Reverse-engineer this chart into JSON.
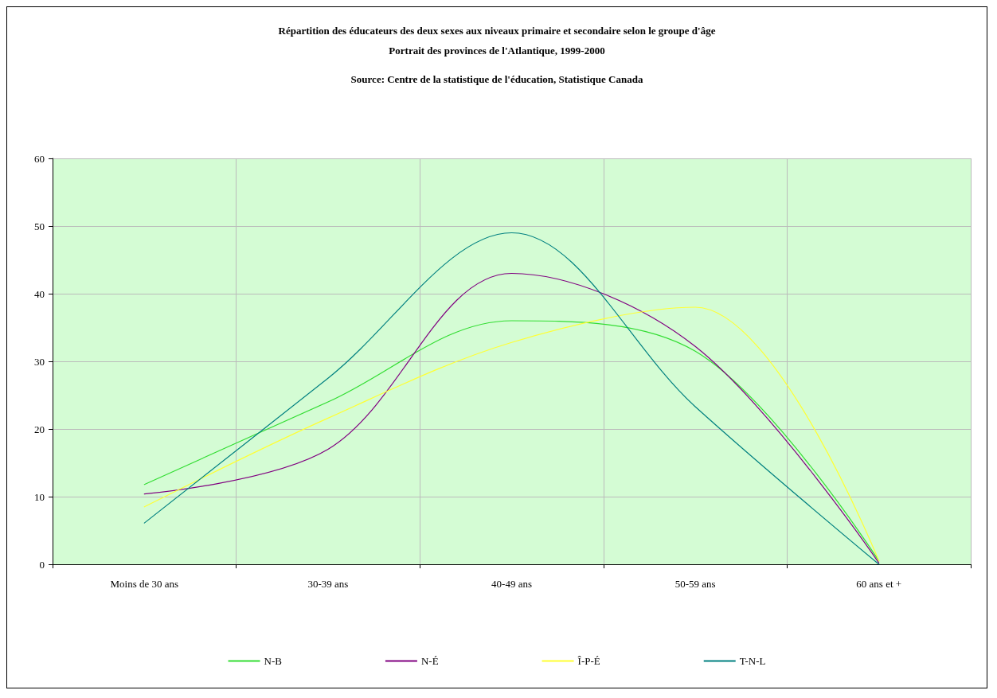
{
  "chart_data": {
    "type": "line",
    "title": "Répartition des éducateurs des deux sexes aux niveaux primaire et secondaire selon le groupe d'âge",
    "subtitle": "Portrait des provinces de l'Atlantique, 1999-2000",
    "annotations": [
      "Source: Centre de la statistique de l'éducation, Statistique Canada"
    ],
    "categories": [
      "Moins de 30 ans",
      "30-39 ans",
      "40-49 ans",
      "50-59 ans",
      "60 ans et +"
    ],
    "series": [
      {
        "name": "N-B",
        "color": "#33dd33",
        "values": [
          11.8,
          24,
          36,
          31.5,
          0.5
        ]
      },
      {
        "name": "N-É",
        "color": "#800080",
        "values": [
          10.4,
          17,
          43,
          32.2,
          0.2
        ]
      },
      {
        "name": "Î-P-É",
        "color": "#ffff33",
        "values": [
          8.5,
          21.6,
          32.8,
          38,
          0.5
        ]
      },
      {
        "name": "T-N-L",
        "color": "#008080",
        "values": [
          6.1,
          27.5,
          49,
          23.3,
          0
        ]
      }
    ],
    "ylim": [
      0,
      60
    ],
    "yticks": [
      0,
      10,
      20,
      30,
      40,
      50,
      60
    ],
    "grid": true,
    "legend": "bottom",
    "marker": "none",
    "line_style": "solid"
  }
}
